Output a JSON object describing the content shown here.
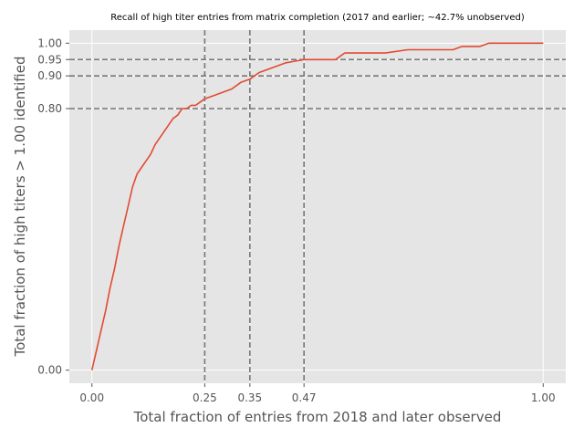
{
  "chart_data": {
    "type": "line",
    "title": "Recall of high titer entries from matrix completion (2017 and earlier; ~42.7% unobserved)",
    "xlabel": "Total fraction of entries from 2018 and later observed",
    "ylabel": "Total fraction of high titers > 1.00 identified",
    "xlim": [
      -0.05,
      1.05
    ],
    "ylim": [
      -0.04,
      1.04
    ],
    "grid": true,
    "xticks": [
      0.0,
      0.25,
      0.35,
      0.47,
      1.0
    ],
    "xtick_labels": [
      "0.00",
      "0.25",
      "0.35",
      "0.47",
      "1.00"
    ],
    "yticks": [
      0.0,
      0.8,
      0.9,
      0.95,
      1.0
    ],
    "ytick_labels": [
      "0.00",
      "0.80",
      "0.90",
      "0.95",
      "1.00"
    ],
    "reference_lines": {
      "vertical": [
        0.25,
        0.35,
        0.47
      ],
      "horizontal": [
        0.8,
        0.9,
        0.95
      ],
      "style": "dashed",
      "color": "#777777"
    },
    "colors": {
      "line": "#e24a33",
      "background": "#e5e5e5",
      "grid": "#ffffff"
    },
    "series": [
      {
        "x": [
          0.0,
          0.01,
          0.02,
          0.03,
          0.04,
          0.05,
          0.06,
          0.07,
          0.08,
          0.09,
          0.1,
          0.11,
          0.12,
          0.13,
          0.14,
          0.15,
          0.16,
          0.17,
          0.18,
          0.19,
          0.2,
          0.21,
          0.22,
          0.23,
          0.24,
          0.25,
          0.27,
          0.29,
          0.31,
          0.33,
          0.35,
          0.37,
          0.39,
          0.41,
          0.43,
          0.45,
          0.47,
          0.5,
          0.54,
          0.55,
          0.56,
          0.6,
          0.65,
          0.7,
          0.75,
          0.8,
          0.82,
          0.84,
          0.86,
          0.88,
          0.9,
          0.95,
          1.0
        ],
        "y": [
          0.0,
          0.06,
          0.12,
          0.18,
          0.25,
          0.31,
          0.38,
          0.44,
          0.5,
          0.56,
          0.6,
          0.62,
          0.64,
          0.66,
          0.69,
          0.71,
          0.73,
          0.75,
          0.77,
          0.78,
          0.8,
          0.8,
          0.81,
          0.81,
          0.82,
          0.83,
          0.84,
          0.85,
          0.86,
          0.88,
          0.89,
          0.91,
          0.92,
          0.93,
          0.94,
          0.945,
          0.95,
          0.95,
          0.95,
          0.96,
          0.97,
          0.97,
          0.97,
          0.98,
          0.98,
          0.98,
          0.99,
          0.99,
          0.99,
          1.0,
          1.0,
          1.0,
          1.0
        ]
      }
    ]
  }
}
